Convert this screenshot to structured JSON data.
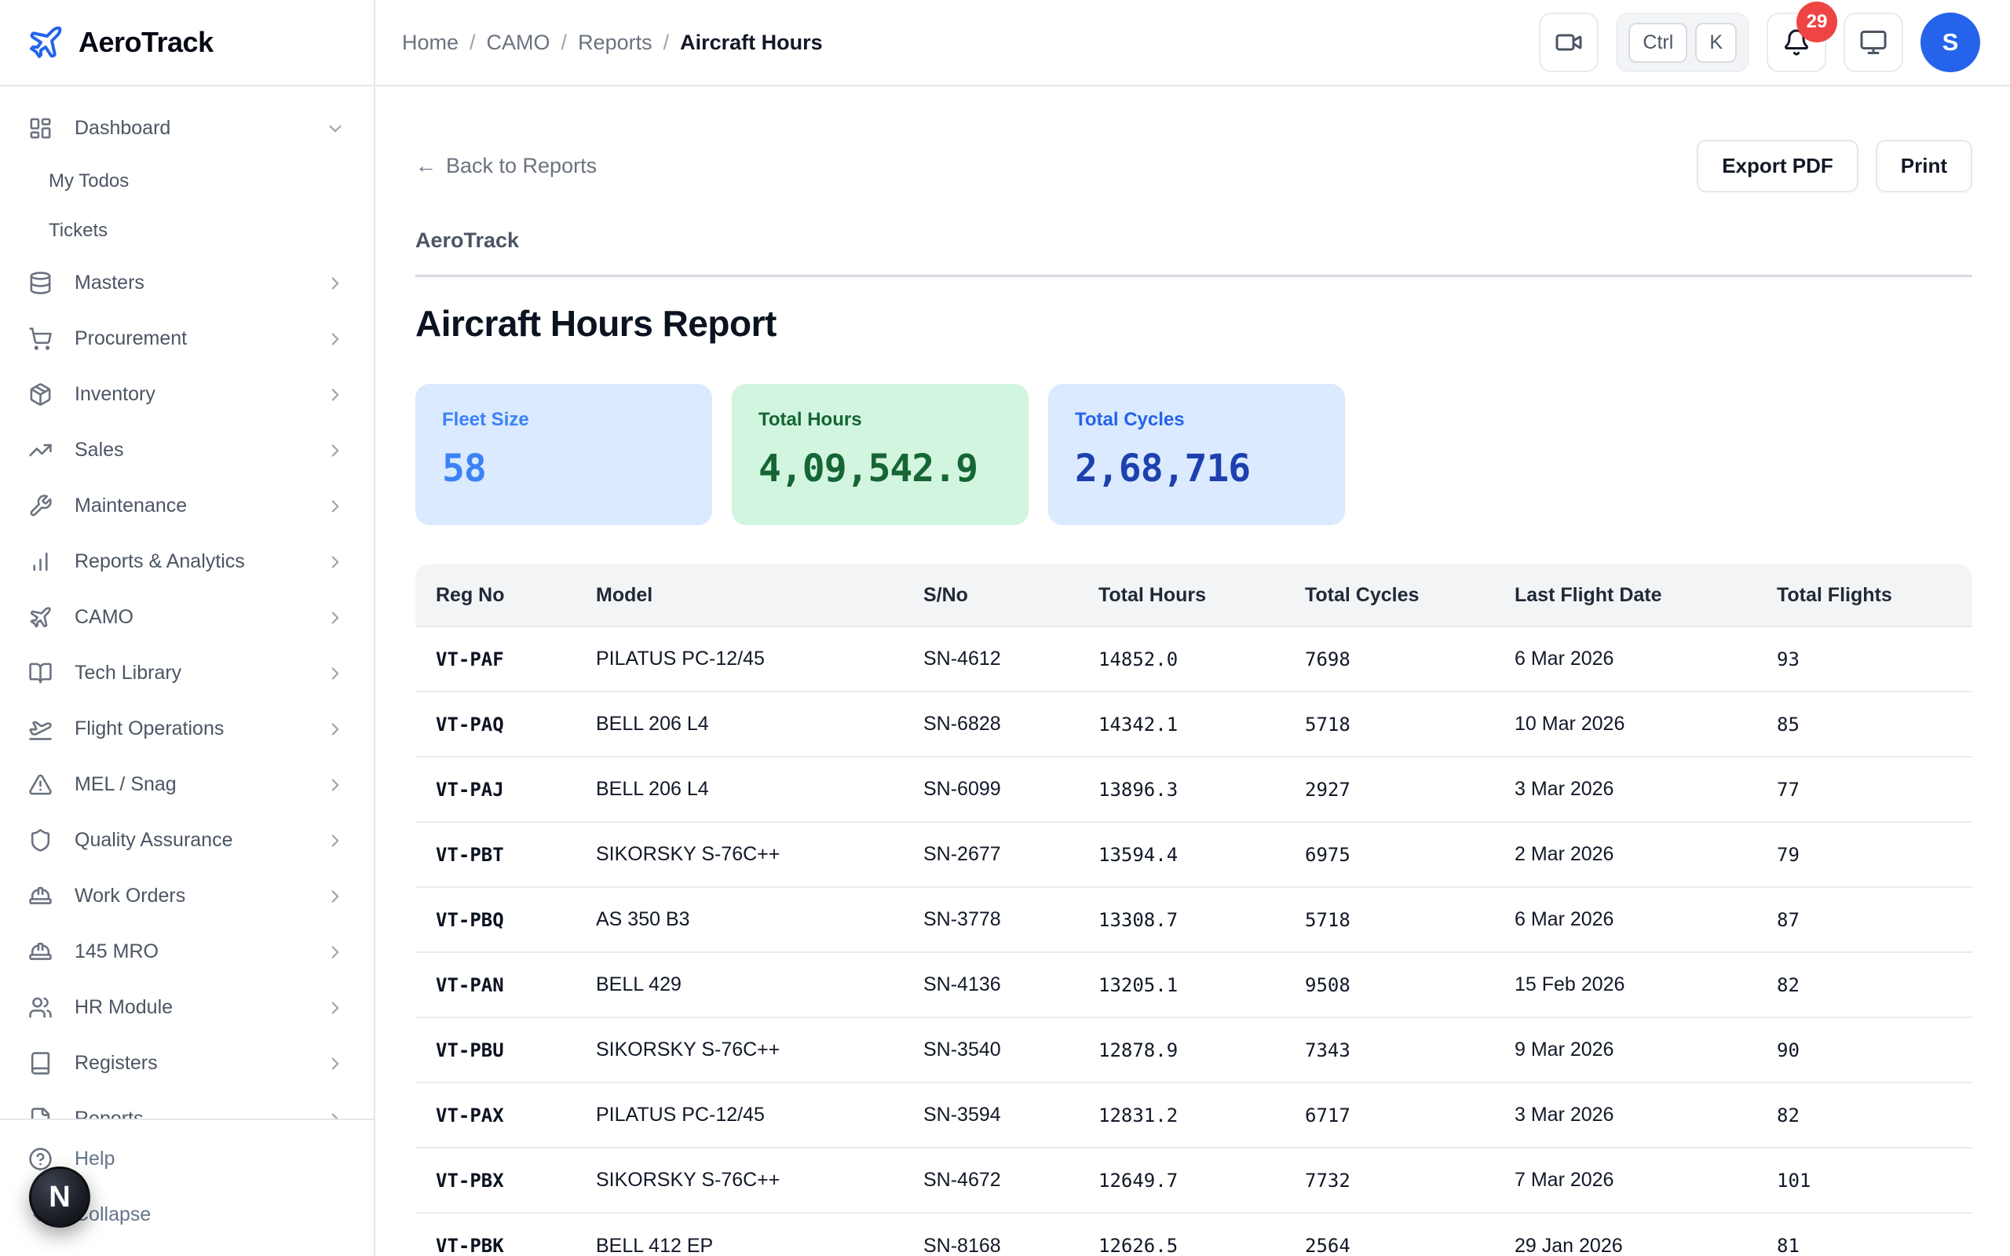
{
  "brand": {
    "name": "AeroTrack"
  },
  "header": {
    "breadcrumb": {
      "links": [
        "Home",
        "CAMO",
        "Reports"
      ],
      "current": "Aircraft Hours",
      "separator": "/"
    },
    "shortcut_keys": [
      "Ctrl",
      "K"
    ],
    "notification_count": "29",
    "avatar_initial": "S"
  },
  "sidebar": {
    "items": [
      {
        "label": "Dashboard",
        "icon": "dashboard",
        "chevron": "down"
      },
      {
        "label": "My Todos",
        "sub": true
      },
      {
        "label": "Tickets",
        "sub": true
      },
      {
        "label": "Masters",
        "icon": "database",
        "chevron": "right"
      },
      {
        "label": "Procurement",
        "icon": "cart",
        "chevron": "right"
      },
      {
        "label": "Inventory",
        "icon": "package",
        "chevron": "right"
      },
      {
        "label": "Sales",
        "icon": "trending-up",
        "chevron": "right"
      },
      {
        "label": "Maintenance",
        "icon": "wrench",
        "chevron": "right"
      },
      {
        "label": "Reports & Analytics",
        "icon": "bar-chart",
        "chevron": "right"
      },
      {
        "label": "CAMO",
        "icon": "plane",
        "chevron": "right"
      },
      {
        "label": "Tech Library",
        "icon": "book-open",
        "chevron": "right"
      },
      {
        "label": "Flight Operations",
        "icon": "plane-takeoff",
        "chevron": "right"
      },
      {
        "label": "MEL / Snag",
        "icon": "alert-triangle",
        "chevron": "right"
      },
      {
        "label": "Quality Assurance",
        "icon": "shield",
        "chevron": "right"
      },
      {
        "label": "Work Orders",
        "icon": "hard-hat",
        "chevron": "right"
      },
      {
        "label": "145 MRO",
        "icon": "hard-hat",
        "chevron": "right"
      },
      {
        "label": "HR Module",
        "icon": "users",
        "chevron": "right"
      },
      {
        "label": "Registers",
        "icon": "book",
        "chevron": "right"
      },
      {
        "label": "Reports",
        "icon": "file",
        "chevron": "right"
      }
    ],
    "footer_items": [
      {
        "label": "Help",
        "icon": "help-circle"
      },
      {
        "label": "Collapse",
        "icon": "chevrons-left"
      }
    ],
    "floating_button_initial": "N"
  },
  "report": {
    "back_arrow": "←",
    "back_link": "Back to Reports",
    "actions": {
      "export_pdf": "Export PDF",
      "print": "Print"
    },
    "brand_heading": "AeroTrack",
    "title": "Aircraft Hours Report",
    "cards": [
      {
        "label": "Fleet Size",
        "value": "58",
        "bg": "#dbeafe",
        "label_color": "#3b82f6",
        "value_color": "#3b82f6"
      },
      {
        "label": "Total Hours",
        "value": "4,09,542.9",
        "bg": "#d2f5e0",
        "label_color": "#166534",
        "value_color": "#166534"
      },
      {
        "label": "Total Cycles",
        "value": "2,68,716",
        "bg": "#dbeafe",
        "label_color": "#2563eb",
        "value_color": "#1e40af"
      }
    ],
    "table": {
      "columns": [
        "Reg No",
        "Model",
        "S/No",
        "Total Hours",
        "Total Cycles",
        "Last Flight Date",
        "Total Flights"
      ],
      "rows": [
        [
          "VT-PAF",
          "PILATUS PC-12/45",
          "SN-4612",
          "14852.0",
          "7698",
          "6 Mar 2026",
          "93"
        ],
        [
          "VT-PAQ",
          "BELL 206 L4",
          "SN-6828",
          "14342.1",
          "5718",
          "10 Mar 2026",
          "85"
        ],
        [
          "VT-PAJ",
          "BELL 206 L4",
          "SN-6099",
          "13896.3",
          "2927",
          "3 Mar 2026",
          "77"
        ],
        [
          "VT-PBT",
          "SIKORSKY S-76C++",
          "SN-2677",
          "13594.4",
          "6975",
          "2 Mar 2026",
          "79"
        ],
        [
          "VT-PBQ",
          "AS 350 B3",
          "SN-3778",
          "13308.7",
          "5718",
          "6 Mar 2026",
          "87"
        ],
        [
          "VT-PAN",
          "BELL 429",
          "SN-4136",
          "13205.1",
          "9508",
          "15 Feb 2026",
          "82"
        ],
        [
          "VT-PBU",
          "SIKORSKY S-76C++",
          "SN-3540",
          "12878.9",
          "7343",
          "9 Mar 2026",
          "90"
        ],
        [
          "VT-PAX",
          "PILATUS PC-12/45",
          "SN-3594",
          "12831.2",
          "6717",
          "3 Mar 2026",
          "82"
        ],
        [
          "VT-PBX",
          "SIKORSKY S-76C++",
          "SN-4672",
          "12649.7",
          "7732",
          "7 Mar 2026",
          "101"
        ],
        [
          "VT-PBK",
          "BELL 412 EP",
          "SN-8168",
          "12626.5",
          "2564",
          "29 Jan 2026",
          "81"
        ]
      ]
    }
  },
  "colors": {
    "accent_blue": "#2563eb",
    "badge_red": "#ef4444"
  }
}
